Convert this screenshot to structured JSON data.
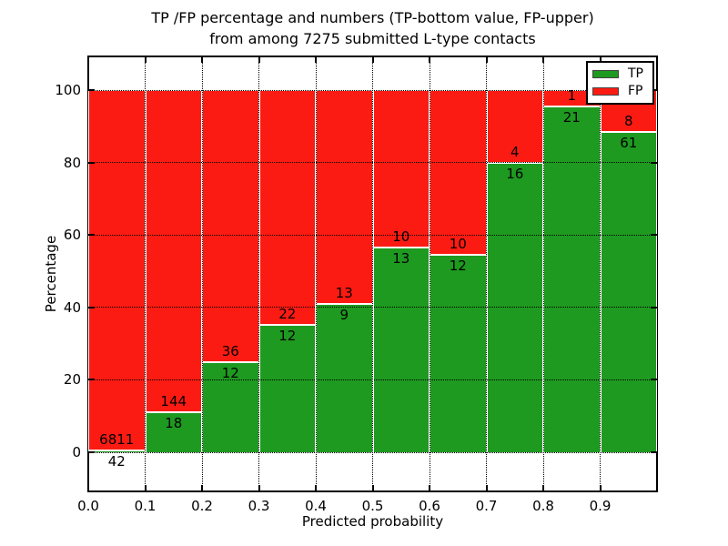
{
  "figure": {
    "title_line1": "TP /FP percentage and numbers (TP-bottom value, FP-upper)",
    "title_line2": "from among 7275 submitted L-type contacts",
    "xlabel": "Predicted probability",
    "ylabel": "Percentage"
  },
  "chart_data": {
    "type": "bar",
    "stacked": true,
    "title": "TP /FP percentage and numbers (TP-bottom value, FP-upper) from among 7275 submitted L-type contacts",
    "xlabel": "Predicted probability",
    "ylabel": "Percentage",
    "total_contacts": 7275,
    "units": "percent of each bin total; TP% = TP/(TP+FP)*100",
    "bin_edges": [
      0.0,
      0.1,
      0.2,
      0.3,
      0.4,
      0.5,
      0.6,
      0.7,
      0.8,
      0.9,
      1.0
    ],
    "categories": [
      "0.0-0.1",
      "0.1-0.2",
      "0.2-0.3",
      "0.3-0.4",
      "0.4-0.5",
      "0.5-0.6",
      "0.6-0.7",
      "0.7-0.8",
      "0.8-0.9",
      "0.9-1.0"
    ],
    "series": [
      {
        "name": "TP",
        "color": "#1e9a20",
        "values": [
          42,
          18,
          12,
          12,
          9,
          13,
          12,
          16,
          21,
          61
        ]
      },
      {
        "name": "FP",
        "color": "#fb1b13",
        "values": [
          6811,
          144,
          36,
          22,
          13,
          10,
          10,
          4,
          1,
          8
        ]
      }
    ],
    "tp_percentages": [
      0.61,
      11.11,
      25.0,
      35.29,
      40.91,
      56.52,
      54.55,
      80.0,
      95.45,
      88.41
    ],
    "x_tick_labels": [
      "0.0",
      "0.1",
      "0.2",
      "0.3",
      "0.4",
      "0.5",
      "0.6",
      "0.7",
      "0.8",
      "0.9"
    ],
    "y_tick_values": [
      0,
      20,
      40,
      60,
      80,
      100
    ],
    "xlim": [
      0.0,
      1.0
    ],
    "ylim": [
      -10.8,
      109.4
    ],
    "grid": "dotted, drawn over bars",
    "legend": {
      "position": "upper right",
      "entries": [
        {
          "label": "TP",
          "color": "#1e9a20"
        },
        {
          "label": "FP",
          "color": "#fb1b13"
        }
      ]
    }
  }
}
